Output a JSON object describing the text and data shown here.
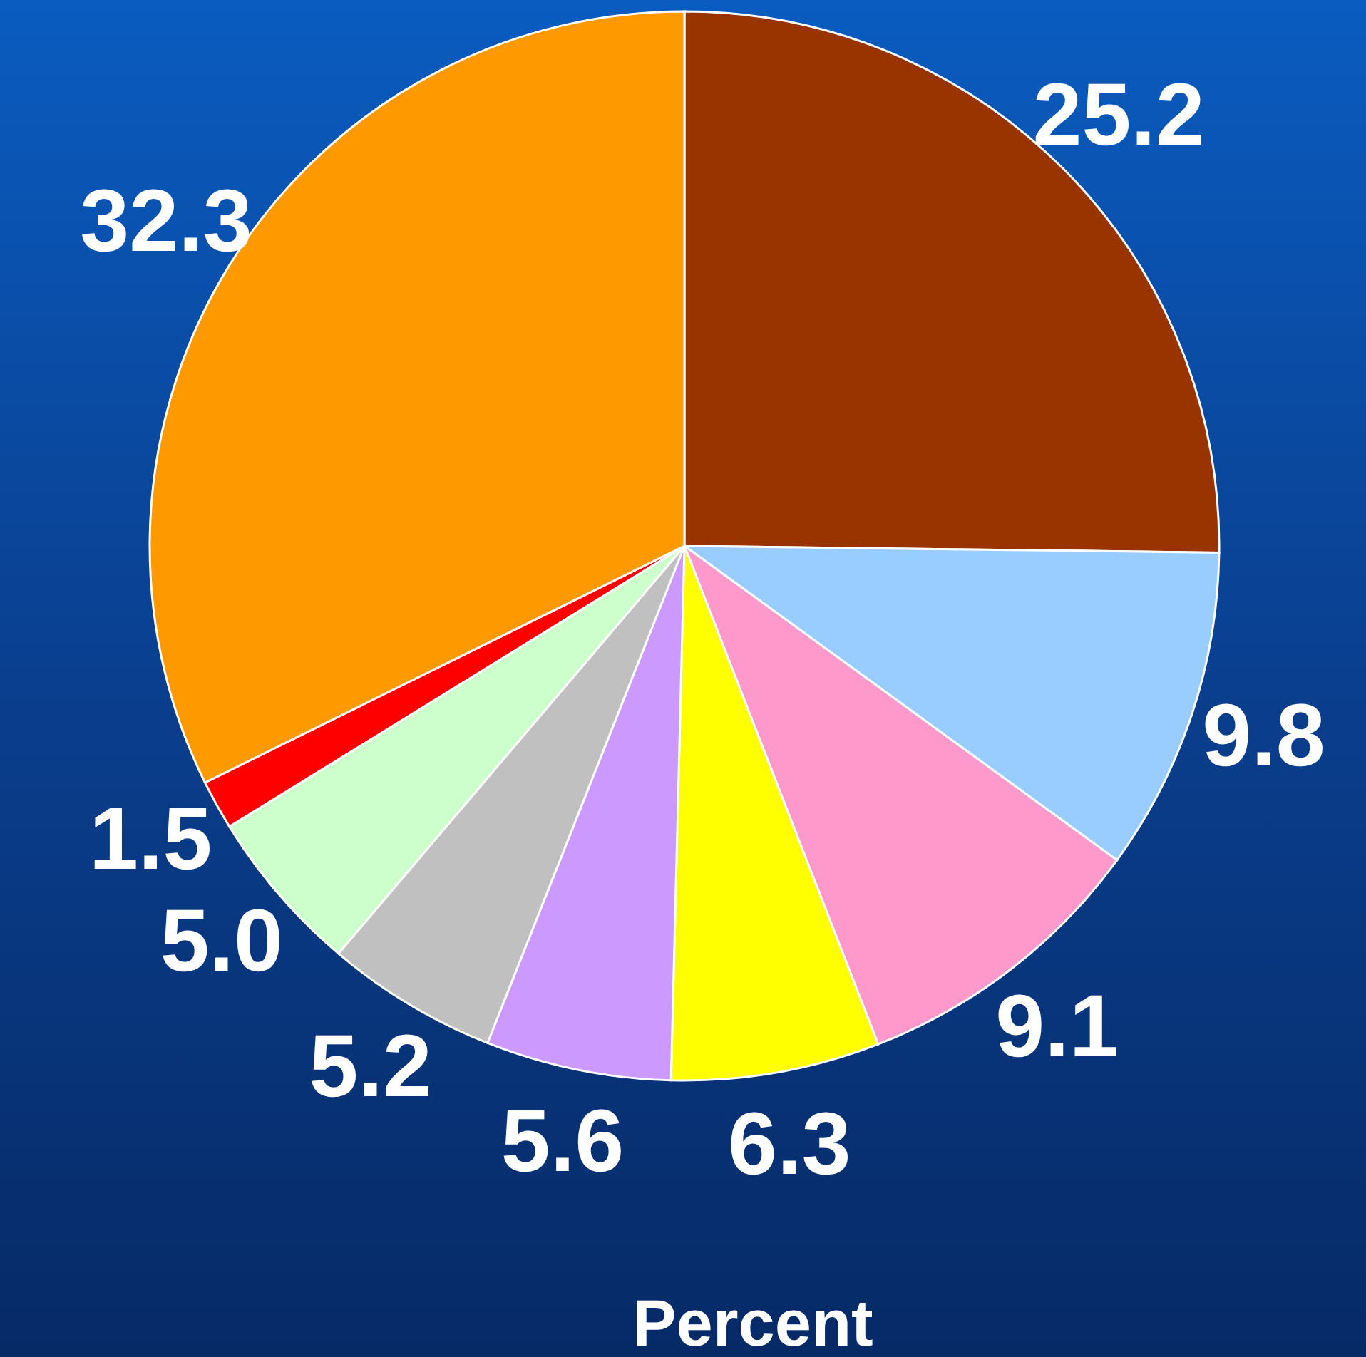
{
  "chart_data": {
    "type": "pie",
    "categories": [
      null,
      null,
      null,
      null,
      null,
      null,
      null,
      null,
      null
    ],
    "values": [
      25.2,
      9.8,
      9.1,
      6.3,
      5.6,
      5.2,
      5.0,
      1.5,
      32.3
    ],
    "colors": [
      "#993300",
      "#99ccff",
      "#ff99cc",
      "#ffff00",
      "#cc99ff",
      "#c0c0c0",
      "#ccffcc",
      "#ff0000",
      "#ff9900"
    ],
    "value_labels": [
      "25.2",
      "9.8",
      "9.1",
      "6.3",
      "5.6",
      "5.2",
      "5.0",
      "1.5",
      "32.3"
    ],
    "annotations": [
      "Percent"
    ]
  }
}
